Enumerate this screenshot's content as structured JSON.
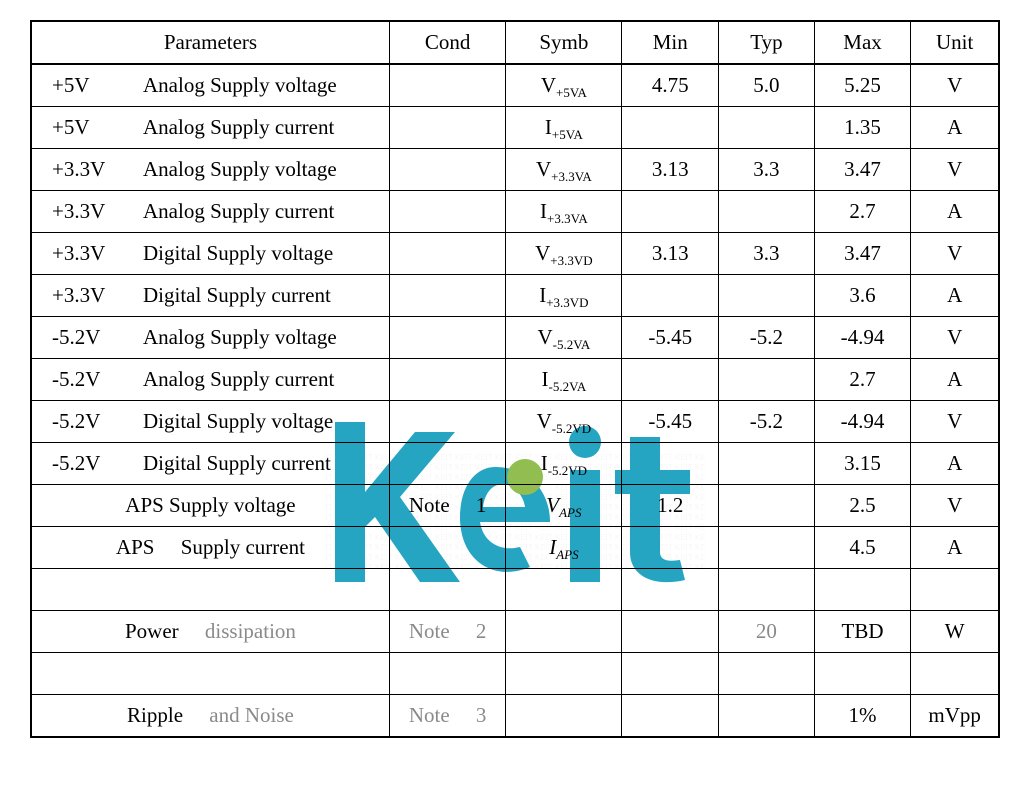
{
  "table": {
    "header": {
      "parameters": "Parameters",
      "cond": "Cond",
      "symb": "Symb",
      "min": "Min",
      "typ": "Typ",
      "max": "Max",
      "unit": "Unit"
    },
    "rows": [
      {
        "param_prefix": "+5V",
        "param_text": "Analog Supply voltage",
        "cond": "",
        "symb_base": "V",
        "symb_sub": "+5VA",
        "min": "4.75",
        "typ": "5.0",
        "max": "5.25",
        "unit": "V"
      },
      {
        "param_prefix": "+5V",
        "param_text": "Analog Supply current",
        "cond": "",
        "symb_base": "I",
        "symb_sub": "+5VA",
        "min": "",
        "typ": "",
        "max": "1.35",
        "unit": "A"
      },
      {
        "param_prefix": "+3.3V",
        "param_text": "Analog Supply voltage",
        "cond": "",
        "symb_base": "V",
        "symb_sub": "+3.3VA",
        "min": "3.13",
        "typ": "3.3",
        "max": "3.47",
        "unit": "V"
      },
      {
        "param_prefix": "+3.3V",
        "param_text": "Analog Supply current",
        "cond": "",
        "symb_base": "I",
        "symb_sub": "+3.3VA",
        "min": "",
        "typ": "",
        "max": "2.7",
        "unit": "A"
      },
      {
        "param_prefix": "+3.3V",
        "param_text": "Digital Supply voltage",
        "cond": "",
        "symb_base": "V",
        "symb_sub": "+3.3VD",
        "min": "3.13",
        "typ": "3.3",
        "max": "3.47",
        "unit": "V"
      },
      {
        "param_prefix": "+3.3V",
        "param_text": "Digital Supply current",
        "cond": "",
        "symb_base": "I",
        "symb_sub": "+3.3VD",
        "min": "",
        "typ": "",
        "max": "3.6",
        "unit": "A"
      },
      {
        "param_prefix": "-5.2V",
        "param_text": "Analog Supply voltage",
        "cond": "",
        "symb_base": "V",
        "symb_sub": "-5.2VA",
        "min": "-5.45",
        "typ": "-5.2",
        "max": "-4.94",
        "unit": "V"
      },
      {
        "param_prefix": "-5.2V",
        "param_text": "Analog Supply current",
        "cond": "",
        "symb_base": "I",
        "symb_sub": "-5.2VA",
        "min": "",
        "typ": "",
        "max": "2.7",
        "unit": "A"
      },
      {
        "param_prefix": "-5.2V",
        "param_text": "Digital Supply voltage",
        "cond": "",
        "symb_base": "V",
        "symb_sub": "-5.2VD",
        "min": "-5.45",
        "typ": "-5.2",
        "max": "-4.94",
        "unit": "V"
      },
      {
        "param_prefix": "-5.2V",
        "param_text": "Digital Supply current",
        "cond": "",
        "symb_base": "I",
        "symb_sub": "-5.2VD",
        "min": "",
        "typ": "",
        "max": "3.15",
        "unit": "A"
      },
      {
        "param_centered": true,
        "param_text": "APS Supply voltage",
        "cond": "Note  1",
        "symb_italic": true,
        "symb_base": "V",
        "symb_sub": "APS",
        "min": "1.2",
        "typ": "",
        "max": "2.5",
        "unit": "V"
      },
      {
        "param_centered": true,
        "param_text": "APS  Supply current",
        "cond": "",
        "symb_italic": true,
        "symb_base": "I",
        "symb_sub": "APS",
        "min": "",
        "typ": "",
        "max": "4.5",
        "unit": "A"
      },
      {
        "empty": true
      },
      {
        "param_centered": true,
        "param_html": "Power  <span class=\"faded\">dissipation</span>",
        "cond_html": "<span class=\"faded\">Note  2</span>",
        "symb": "",
        "min": "",
        "typ_html": "<span class=\"faded\">20</span>",
        "max": "TBD",
        "unit": "W"
      },
      {
        "empty": true
      },
      {
        "param_centered": true,
        "param_html": "Ripple  <span class=\"faded\">and Noise</span>",
        "cond_html": "<span class=\"faded\">Note  3</span>",
        "symb": "",
        "min": "",
        "typ": "",
        "max": "1%",
        "unit": "mVpp"
      }
    ]
  },
  "watermark": {
    "text": "Keit",
    "color_blue": "#0096b8",
    "color_green": "#7fb233",
    "color_gray": "#cccccc"
  },
  "styling": {
    "border_color": "#000000",
    "text_color": "#000000",
    "faded_color": "#8a8a8a",
    "background_color": "#ffffff",
    "font_family": "Times New Roman",
    "base_fontsize": 21,
    "sub_fontsize": 13
  }
}
